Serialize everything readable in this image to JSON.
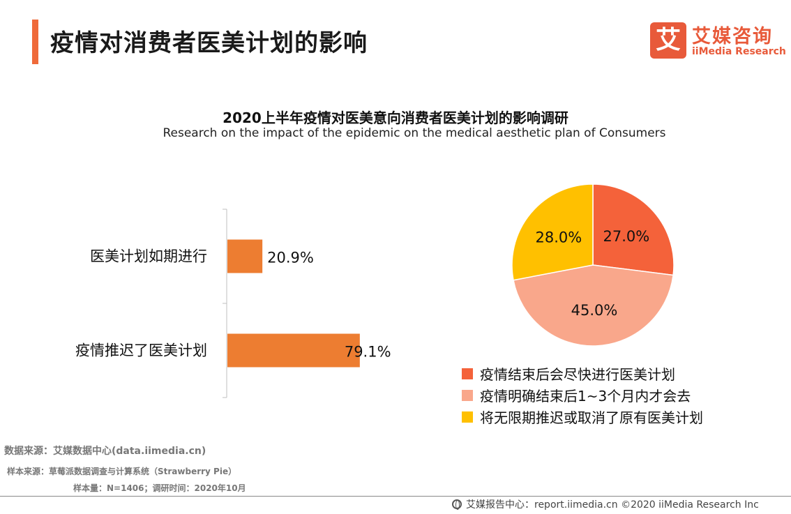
{
  "header": {
    "title": "疫情对消费者医美计划的影响",
    "logo_mark": "艾",
    "logo_cn": "艾媒咨询",
    "logo_en": "iiMedia Research"
  },
  "chart_title": "2020上半年疫情对医美意向消费者医美计划的影响调研",
  "chart_subtitle": "Research on the impact of the epidemic on the medical aesthetic plan of Consumers",
  "chart_data": [
    {
      "type": "bar",
      "orientation": "horizontal",
      "categories": [
        "医美计划如期进行",
        "疫情推迟了医美计划"
      ],
      "values": [
        20.9,
        79.1
      ],
      "value_labels": [
        "20.9%",
        "79.1%"
      ],
      "color": "#ed7d31",
      "xlim": [
        0,
        100
      ]
    },
    {
      "type": "pie",
      "labels": [
        "疫情结束后会尽快进行医美计划",
        "疫情明确结束后1~3个月内才会去",
        "将无限期推迟或取消了原有医美计划"
      ],
      "values": [
        27.0,
        45.0,
        28.0
      ],
      "value_labels": [
        "27.0%",
        "45.0%",
        "28.0%"
      ],
      "colors": [
        "#f4623a",
        "#f9a78b",
        "#ffc000"
      ],
      "legend_position": "bottom"
    }
  ],
  "sources": {
    "line1": "数据来源：艾媒数据中心(data.iimedia.cn)",
    "line2": "样本来源：草莓派数据调查与计算系统（Strawberry Pie）",
    "line3": "样本量：N=1406；调研时间：2020年10月"
  },
  "footer": {
    "text": "艾媒报告中心：report.iimedia.cn   ©2020  iiMedia Research  Inc"
  }
}
